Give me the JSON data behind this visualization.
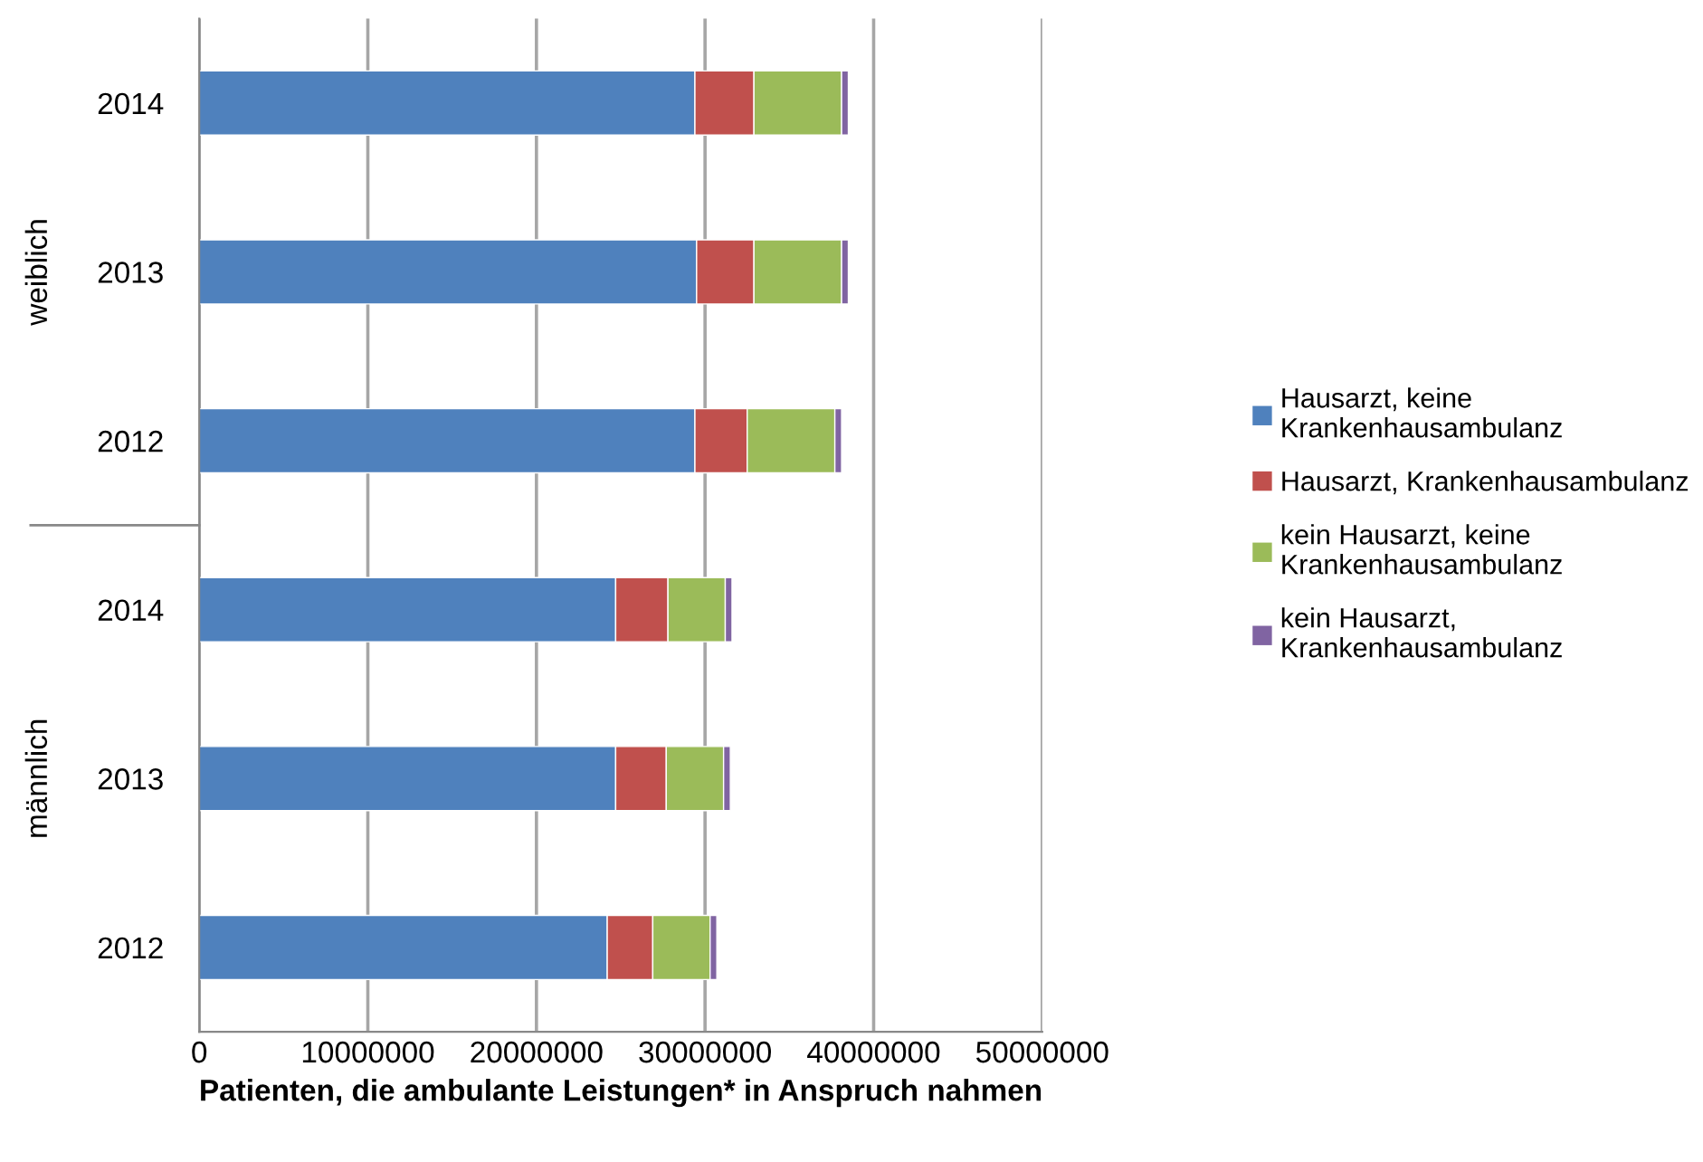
{
  "chart_data": {
    "type": "bar",
    "orientation": "horizontal",
    "stacked": true,
    "categories": [
      "2014",
      "2013",
      "2012",
      "2014",
      "2013",
      "2012"
    ],
    "annotations": [
      "weiblich",
      "männlich"
    ],
    "xlabel": "Patienten, die ambulante Leistungen* in Anspruch nahmen",
    "series": [
      {
        "name": "Hausarzt, keine\nKrankenhausambulanz",
        "color": "#4f81bd",
        "values": [
          29400000,
          29500000,
          29400000,
          24700000,
          24700000,
          24200000
        ]
      },
      {
        "name": "Hausarzt, Krankenhausambulanz",
        "color": "#c0504d",
        "values": [
          3500000,
          3400000,
          3100000,
          3100000,
          3000000,
          2700000
        ]
      },
      {
        "name": "kein Hausarzt, keine\nKrankenhausambulanz",
        "color": "#9bbb59",
        "values": [
          5200000,
          5200000,
          5200000,
          3400000,
          3400000,
          3400000
        ]
      },
      {
        "name": "kein Hausarzt,\nKrankenhausambulanz",
        "color": "#8064a2",
        "values": [
          400000,
          400000,
          400000,
          400000,
          400000,
          400000
        ]
      }
    ],
    "xlim": [
      0,
      50000000
    ],
    "xticks": [
      0,
      10000000,
      20000000,
      30000000,
      40000000,
      50000000
    ],
    "grid": "x",
    "legend": "right"
  }
}
